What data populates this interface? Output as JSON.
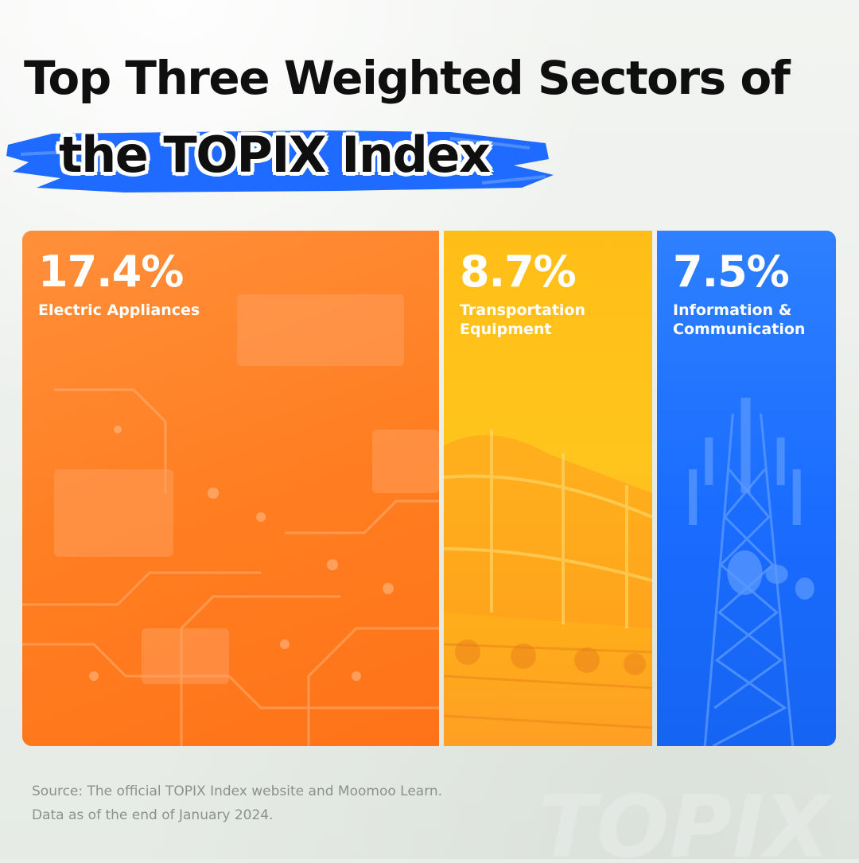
{
  "title": {
    "line1": "Top Three Weighted Sectors of",
    "line2": "the TOPIX Index",
    "highlight_color": "#1f6bff"
  },
  "chart_data": {
    "type": "bar",
    "orientation": "treemap-columns",
    "title": "Top Three Weighted Sectors of the TOPIX Index",
    "categories": [
      "Electric Appliances",
      "Transportation Equipment",
      "Information & Communication"
    ],
    "values": [
      17.4,
      8.7,
      7.5
    ],
    "value_labels": [
      "17.4%",
      "8.7%",
      "7.5%"
    ],
    "label_lines": [
      [
        "Electric Appliances"
      ],
      [
        "Transportation",
        "Equipment"
      ],
      [
        "Information &",
        "Communication"
      ]
    ],
    "unit": "%",
    "colors": [
      "#ff7d20",
      "#ffbd18",
      "#1a6cff"
    ],
    "grid": false,
    "legend": "none"
  },
  "source": {
    "line1": "Source: The official TOPIX Index website and Moomoo Learn.",
    "line2": "Data as of the end of January 2024."
  },
  "watermark": "TOPIX"
}
